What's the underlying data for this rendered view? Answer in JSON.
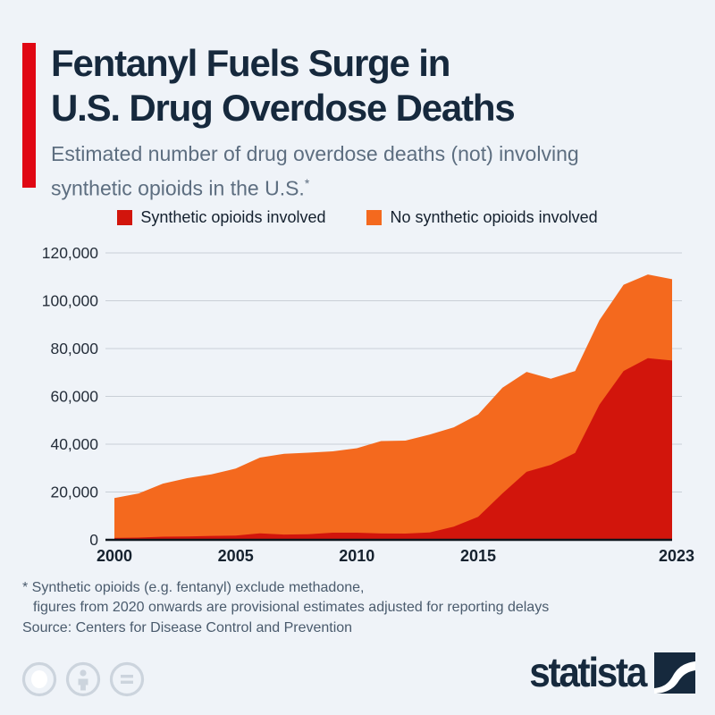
{
  "header": {
    "title_line1": "Fentanyl Fuels Surge in",
    "title_line2": "U.S. Drug Overdose Deaths",
    "subtitle_line1": "Estimated number of drug overdose deaths (not) involving",
    "subtitle_line2": "synthetic opioids in the U.S.",
    "footnote_marker": "*"
  },
  "chart_data": {
    "type": "area",
    "stacked": true,
    "title": "Estimated number of drug overdose deaths (not) involving synthetic opioids in the U.S.",
    "x": [
      2000,
      2001,
      2002,
      2003,
      2004,
      2005,
      2006,
      2007,
      2008,
      2009,
      2010,
      2011,
      2012,
      2013,
      2014,
      2015,
      2016,
      2017,
      2018,
      2019,
      2020,
      2021,
      2022,
      2023
    ],
    "series": [
      {
        "name": "Synthetic opioids involved",
        "color": "#d2150c",
        "values": [
          800,
          950,
          1300,
          1400,
          1650,
          1750,
          2700,
          2200,
          2300,
          3000,
          3000,
          2650,
          2600,
          3100,
          5550,
          9600,
          19400,
          28450,
          31350,
          36350,
          56500,
          70600,
          76000,
          75000
        ]
      },
      {
        "name": "No synthetic opioids involved",
        "color": "#f4691e",
        "values": [
          16700,
          18450,
          22200,
          24400,
          25750,
          28050,
          31700,
          33800,
          34150,
          34000,
          35300,
          38650,
          38900,
          40900,
          41500,
          42800,
          44200,
          41800,
          36050,
          34250,
          35300,
          36100,
          35000,
          34000
        ]
      }
    ],
    "totals": [
      17500,
      19400,
      23500,
      25800,
      27400,
      29800,
      34400,
      36000,
      36450,
      37000,
      38300,
      41300,
      41500,
      44000,
      47050,
      52400,
      63600,
      70250,
      67400,
      70600,
      91800,
      106700,
      111000,
      109000
    ],
    "ylim": [
      0,
      120000
    ],
    "yticks": [
      {
        "value": 0,
        "label": "0"
      },
      {
        "value": 20000,
        "label": "20,000"
      },
      {
        "value": 40000,
        "label": "40,000"
      },
      {
        "value": 60000,
        "label": "60,000"
      },
      {
        "value": 80000,
        "label": "80,000"
      },
      {
        "value": 100000,
        "label": "100,000"
      },
      {
        "value": 120000,
        "label": "120,000"
      }
    ],
    "xticks": [
      {
        "year": 2000,
        "label": "2000"
      },
      {
        "year": 2005,
        "label": "2005"
      },
      {
        "year": 2010,
        "label": "2010"
      },
      {
        "year": 2015,
        "label": "2015"
      },
      {
        "year": 2023,
        "label": "2023"
      }
    ],
    "grid": "horizontal",
    "legend_position": "top"
  },
  "footer": {
    "footnote_line1": "* Synthetic opioids (e.g. fentanyl) exclude methadone,",
    "footnote_line2": "figures from 2020 onwards are provisional estimates adjusted for reporting delays",
    "source": "Source: Centers for Disease Control and Prevention",
    "brand": "statista"
  },
  "colors": {
    "background": "#eff3f8",
    "accent_bar": "#e00713",
    "title": "#16293d",
    "subtitle": "#5d6e80",
    "synthetic_red": "#d2150c",
    "no_synthetic_orange": "#f4691e",
    "gridline": "#c9cfd7",
    "axis": "#10171f",
    "license_icon_gray": "#ccd4dd"
  }
}
